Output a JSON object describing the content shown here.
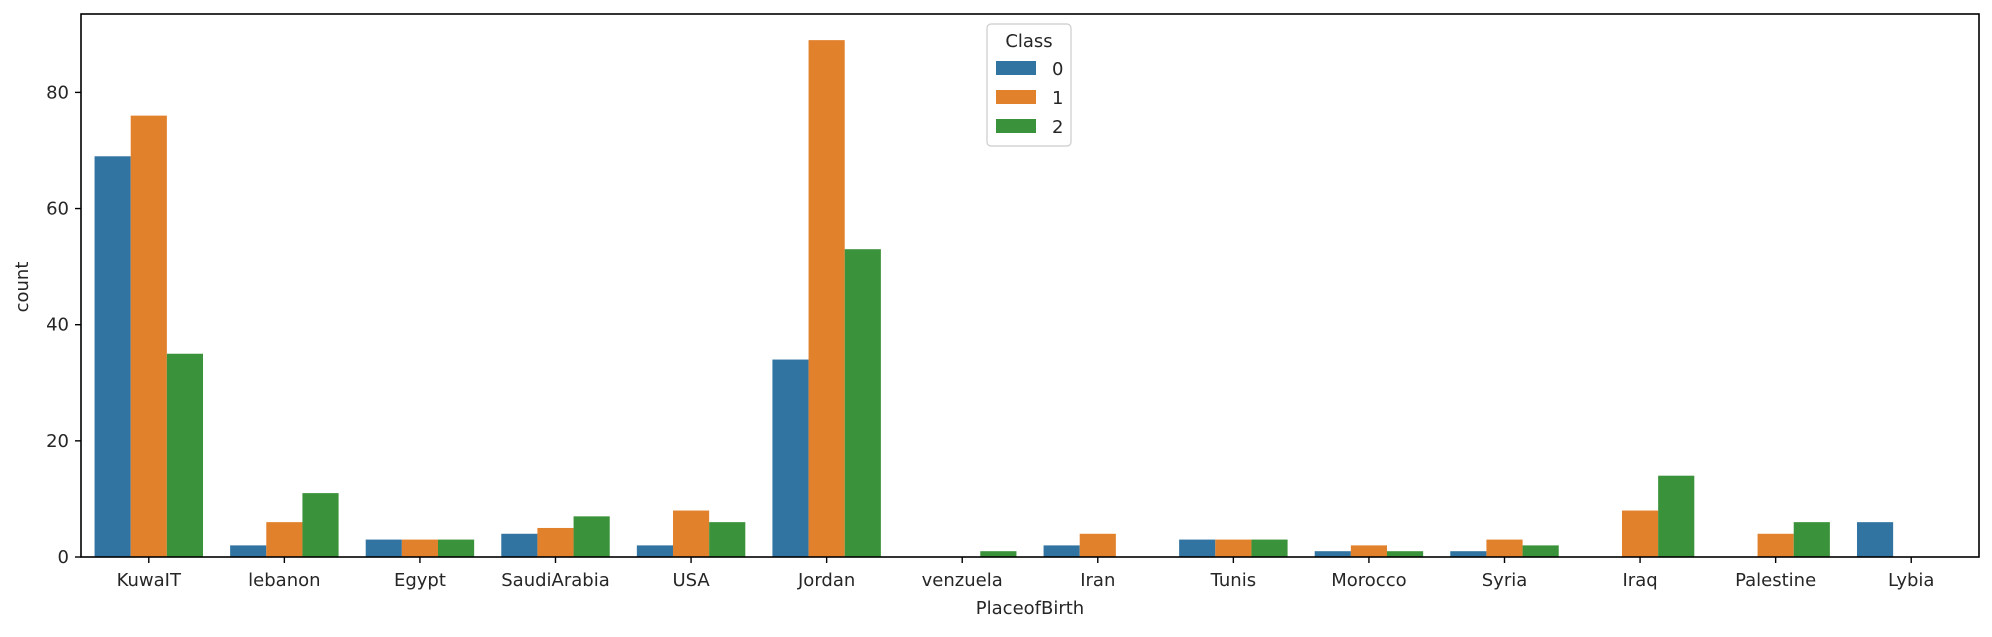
{
  "chart_data": {
    "type": "bar",
    "xlabel": "PlaceofBirth",
    "ylabel": "count",
    "ylim": [
      0,
      93.5
    ],
    "yticks": [
      0,
      20,
      40,
      60,
      80
    ],
    "categories": [
      "KuwaIT",
      "lebanon",
      "Egypt",
      "SaudiArabia",
      "USA",
      "Jordan",
      "venzuela",
      "Iran",
      "Tunis",
      "Morocco",
      "Syria",
      "Iraq",
      "Palestine",
      "Lybia"
    ],
    "series": [
      {
        "name": "0",
        "color": "#3274a1",
        "values": [
          69,
          2,
          3,
          4,
          2,
          34,
          0,
          2,
          3,
          1,
          1,
          0,
          0,
          6
        ]
      },
      {
        "name": "1",
        "color": "#e1812c",
        "values": [
          76,
          6,
          3,
          5,
          8,
          89,
          0,
          4,
          3,
          2,
          3,
          8,
          4,
          0
        ]
      },
      {
        "name": "2",
        "color": "#3a923a",
        "values": [
          35,
          11,
          3,
          7,
          6,
          53,
          1,
          0,
          3,
          1,
          2,
          14,
          6,
          0
        ]
      }
    ],
    "legend": {
      "title": "Class",
      "position": "upper-center"
    },
    "grid": false
  }
}
